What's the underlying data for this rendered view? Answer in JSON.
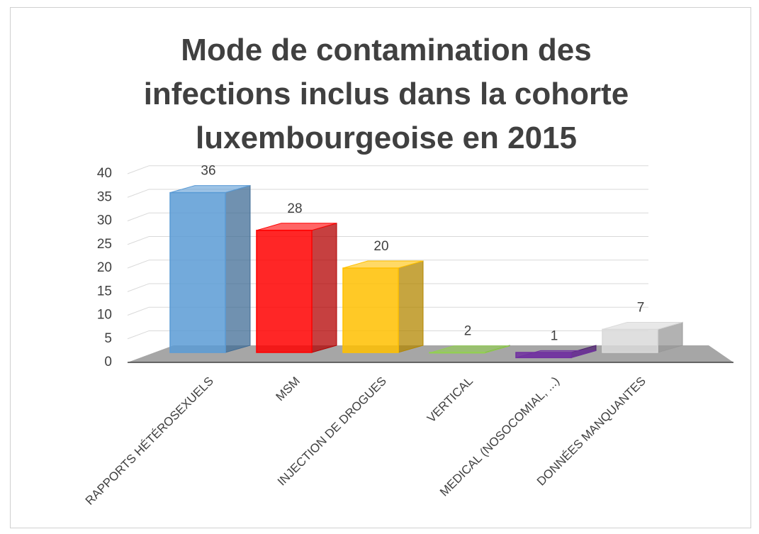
{
  "chart_data": {
    "type": "bar3d",
    "title": "Mode de contamination des infections inclus dans la cohorte luxembourgeoise en 2015",
    "categories": [
      "RAPPORTS HÉTÉROSEXUELS",
      "MSM",
      "INJECTION DE DROGUES",
      "VERTICAL",
      "MEDICAL (NOSOCOMIAL, ...)",
      "DONNÉES MANQUANTES"
    ],
    "values": [
      36,
      28,
      20,
      2,
      1,
      7
    ],
    "colors": [
      "#5b9bd5",
      "#ff0000",
      "#ffc000",
      "#92d050",
      "#7030a0",
      "#d9d9d9"
    ],
    "ylim": [
      0,
      40
    ],
    "yticks": [
      0,
      5,
      10,
      15,
      20,
      25,
      30,
      35,
      40
    ],
    "grid": true
  }
}
